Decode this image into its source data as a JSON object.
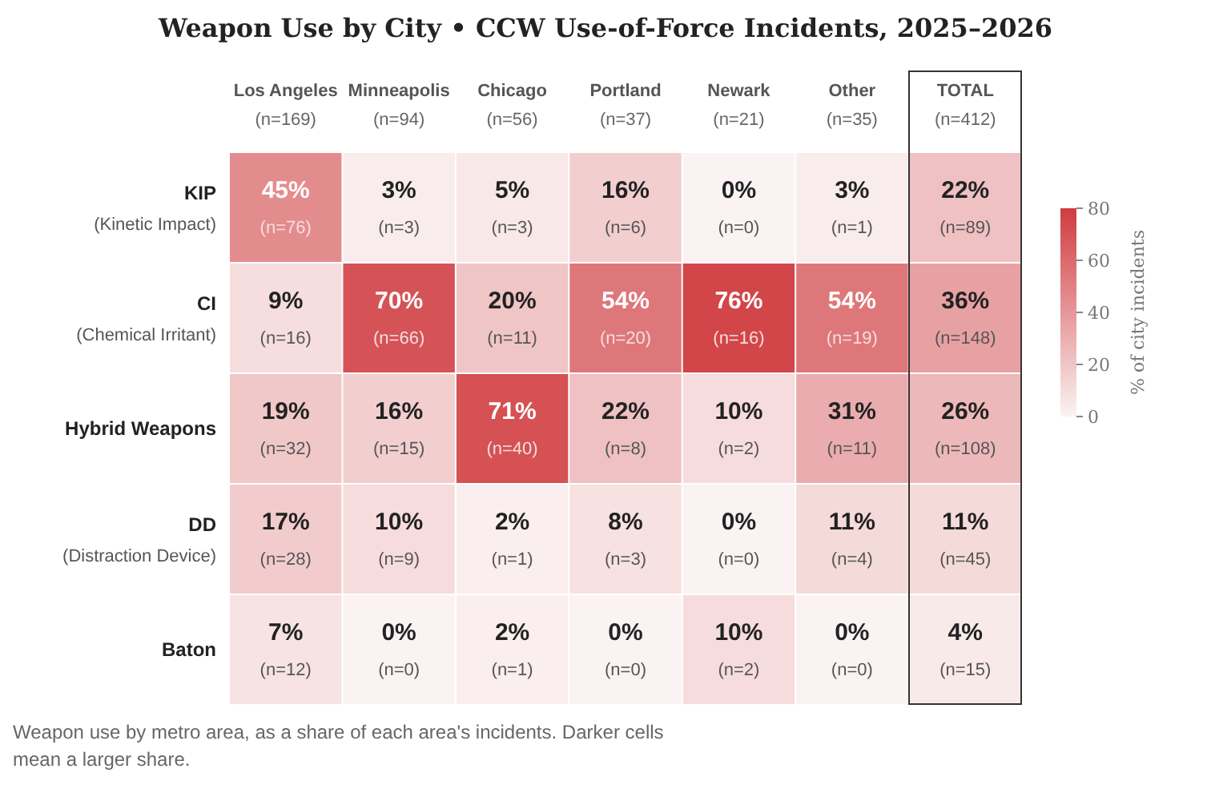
{
  "chart_data": {
    "type": "heatmap",
    "title": "Weapon Use by City • CCW Use-of-Force Incidents, 2025–2026",
    "categories": [
      "Los Angeles\n(n=169)",
      "Minneapolis\n(n=94)",
      "Chicago\n(n=56)",
      "Portland\n(n=37)",
      "Newark\n(n=21)",
      "Other\n(n=35)",
      "TOTAL\n(n=412)"
    ],
    "y_categories": [
      "KIP\n(Kinetic Impact)",
      "CI\n(Chemical Irritant)",
      "Hybrid Weapons",
      "DD\n(Distraction Device)",
      "Baton"
    ],
    "cells": [
      [
        45,
        3,
        5,
        16,
        0,
        3,
        22
      ],
      [
        9,
        70,
        20,
        54,
        76,
        54,
        36
      ],
      [
        19,
        16,
        71,
        22,
        10,
        31,
        26
      ],
      [
        17,
        10,
        2,
        8,
        0,
        11,
        11
      ],
      [
        7,
        0,
        2,
        0,
        10,
        0,
        4
      ]
    ],
    "cell_labels": [
      [
        "45%\n(n=76)",
        "3%\n(n=3)",
        "5%\n(n=3)",
        "16%\n(n=6)",
        "0%\n(n=0)",
        "3%\n(n=1)",
        "22%\n(n=89)"
      ],
      [
        "9%\n(n=16)",
        "70%\n(n=66)",
        "20%\n(n=11)",
        "54%\n(n=20)",
        "76%\n(n=16)",
        "54%\n(n=19)",
        "36%\n(n=148)"
      ],
      [
        "19%\n(n=32)",
        "16%\n(n=15)",
        "71%\n(n=40)",
        "22%\n(n=8)",
        "10%\n(n=2)",
        "31%\n(n=11)",
        "26%\n(n=108)"
      ],
      [
        "17%\n(n=28)",
        "10%\n(n=9)",
        "2%\n(n=1)",
        "8%\n(n=3)",
        "0%\n(n=0)",
        "11%\n(n=4)",
        "11%\n(n=45)"
      ],
      [
        "7%\n(n=12)",
        "0%\n(n=0)",
        "2%\n(n=1)",
        "0%\n(n=0)",
        "10%\n(n=2)",
        "0%\n(n=0)",
        "4%\n(n=15)"
      ]
    ],
    "clim": [
      0,
      80
    ],
    "cticks": [
      0,
      20,
      40,
      60,
      80
    ],
    "clabel": "% of city incidents",
    "annotations": [
      "Weapon use by metro area, as a share of each area's incidents. Darker cells mean a larger share."
    ]
  }
}
